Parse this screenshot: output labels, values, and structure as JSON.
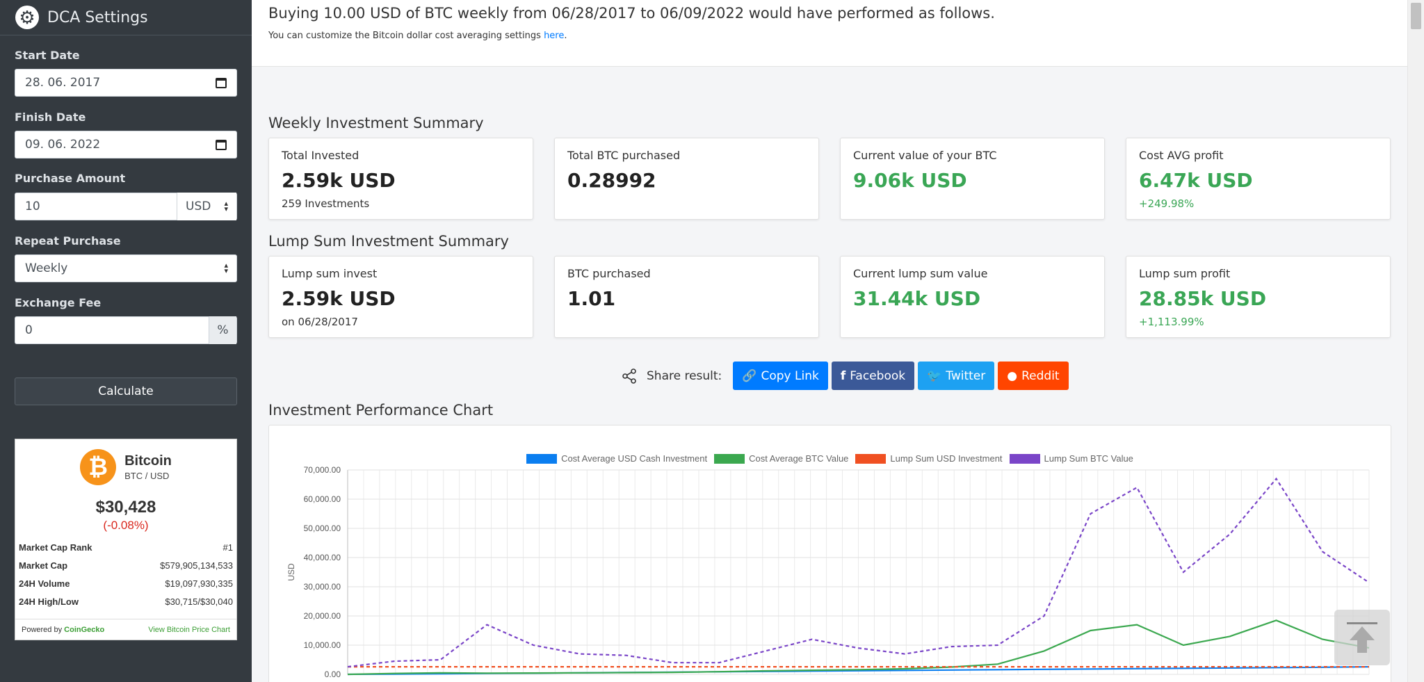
{
  "sidebar": {
    "title": "DCA Settings",
    "start_date": {
      "label": "Start Date",
      "value": "28. 06. 2017"
    },
    "finish_date": {
      "label": "Finish Date",
      "value": "09. 06. 2022"
    },
    "purchase_amount": {
      "label": "Purchase Amount",
      "value": "10",
      "currency": "USD"
    },
    "repeat_purchase": {
      "label": "Repeat Purchase",
      "value": "Weekly"
    },
    "exchange_fee": {
      "label": "Exchange Fee",
      "value": "0",
      "unit": "%"
    },
    "calculate_label": "Calculate"
  },
  "coin_widget": {
    "logo_symbol": "₿",
    "name": "Bitcoin",
    "pair": "BTC / USD",
    "price": "$30,428",
    "change": "(-0.08%)",
    "stats": [
      {
        "key": "Market Cap Rank",
        "value": "#1"
      },
      {
        "key": "Market Cap",
        "value": "$579,905,134,533"
      },
      {
        "key": "24H Volume",
        "value": "$19,097,930,335"
      },
      {
        "key": "24H High/Low",
        "value": "$30,715/$30,040"
      }
    ],
    "powered_by": "Powered by",
    "powered_brand": "CoinGecko",
    "view_link": "View Bitcoin Price Chart"
  },
  "intro": {
    "headline": "Buying 10.00 USD of BTC weekly from 06/28/2017 to 06/09/2022 would have performed as follows.",
    "sub_text": "You can customize the Bitcoin dollar cost averaging settings",
    "sub_link": "here",
    "sub_end": "."
  },
  "weekly": {
    "title": "Weekly Investment Summary",
    "cards": [
      {
        "label": "Total Invested",
        "value": "2.59k USD",
        "sub": "259 Investments"
      },
      {
        "label": "Total BTC purchased",
        "value": "0.28992",
        "sub": ""
      },
      {
        "label": "Current value of your BTC",
        "value": "9.06k USD",
        "sub": ""
      },
      {
        "label": "Cost AVG profit",
        "value": "6.47k USD",
        "sub": "+249.98%"
      }
    ]
  },
  "lump": {
    "title": "Lump Sum Investment Summary",
    "cards": [
      {
        "label": "Lump sum invest",
        "value": "2.59k USD",
        "sub": "on 06/28/2017"
      },
      {
        "label": "BTC purchased",
        "value": "1.01",
        "sub": ""
      },
      {
        "label": "Current lump sum value",
        "value": "31.44k USD",
        "sub": ""
      },
      {
        "label": "Lump sum profit",
        "value": "28.85k USD",
        "sub": "+1,113.99%"
      }
    ]
  },
  "share": {
    "label": "Share result:",
    "buttons": [
      {
        "label": "Copy Link",
        "icon": "link-icon",
        "glyph": "🔗",
        "color": "#007bff"
      },
      {
        "label": "Facebook",
        "icon": "facebook-icon",
        "glyph": "f",
        "color": "#3b5998"
      },
      {
        "label": "Twitter",
        "icon": "twitter-icon",
        "glyph": "🐦",
        "color": "#1da1f2"
      },
      {
        "label": "Reddit",
        "icon": "reddit-icon",
        "glyph": "●",
        "color": "#ff4500"
      }
    ]
  },
  "chart_section_title": "Investment Performance Chart",
  "chart_data": {
    "type": "line",
    "title": "",
    "ylabel": "USD",
    "ylim": [
      0,
      70000
    ],
    "y_ticks": [
      "0.00",
      "10,000.00",
      "20,000.00",
      "30,000.00",
      "40,000.00",
      "50,000.00",
      "60,000.00",
      "70,000.00"
    ],
    "legend_position": "top",
    "grid": true,
    "series": [
      {
        "name": "Cost Average USD Cash Investment",
        "color": "#0a7ef0",
        "dashed": false,
        "values": [
          10,
          100,
          200,
          300,
          400,
          520,
          640,
          760,
          880,
          1000,
          1120,
          1240,
          1360,
          1480,
          1600,
          1720,
          1840,
          1960,
          2080,
          2200,
          2320,
          2440,
          2590
        ]
      },
      {
        "name": "Cost Average BTC Value",
        "color": "#3ba84f",
        "dashed": false,
        "values": [
          10,
          300,
          500,
          400,
          450,
          520,
          600,
          700,
          900,
          1200,
          1400,
          1600,
          1900,
          2500,
          3500,
          8000,
          15000,
          17000,
          10000,
          13000,
          18500,
          12000,
          9060
        ]
      },
      {
        "name": "Lump Sum USD Investment",
        "color": "#f05022",
        "dashed": true,
        "values": [
          2590,
          2590,
          2590,
          2590,
          2590,
          2590,
          2590,
          2590,
          2590,
          2590,
          2590,
          2590,
          2590,
          2590,
          2590,
          2590,
          2590,
          2590,
          2590,
          2590,
          2590,
          2590,
          2590
        ]
      },
      {
        "name": "Lump Sum BTC Value",
        "color": "#7a45c8",
        "dashed": true,
        "values": [
          2600,
          4500,
          5000,
          17000,
          10000,
          7000,
          6500,
          4000,
          4000,
          8000,
          12000,
          9000,
          7000,
          9500,
          10000,
          20000,
          55000,
          64000,
          35000,
          48000,
          67000,
          42000,
          31440
        ]
      }
    ]
  },
  "icons": {
    "settings": "gear-icon",
    "share": "share-icon",
    "scroll_top": "arrow-up-icon"
  }
}
